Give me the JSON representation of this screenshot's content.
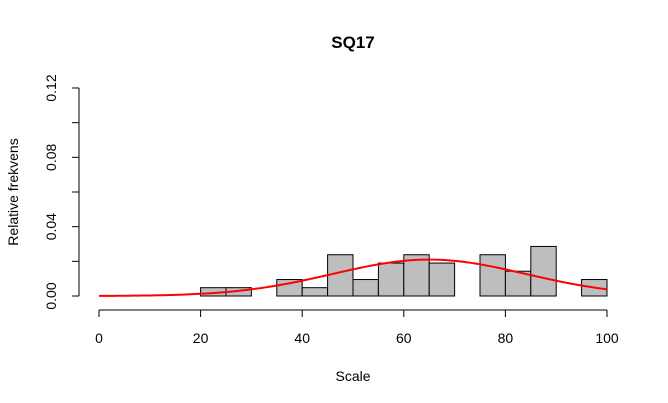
{
  "chart_data": {
    "type": "histogram",
    "title": "SQ17",
    "xlabel": "Scale",
    "ylabel": "Relative frekvens",
    "xlim": [
      0,
      100
    ],
    "ylim": [
      0,
      0.12
    ],
    "x_ticks": [
      0,
      20,
      40,
      60,
      80,
      100
    ],
    "y_ticks": [
      0.0,
      0.04,
      0.08,
      0.12
    ],
    "x_tick_labels": [
      "0",
      "20",
      "40",
      "60",
      "80",
      "100"
    ],
    "y_tick_labels": [
      "0.00",
      "0.04",
      "0.08",
      "0.12"
    ],
    "bin_width": 5,
    "bins": [
      {
        "start": 20,
        "end": 25,
        "value": 0.0048
      },
      {
        "start": 25,
        "end": 30,
        "value": 0.0048
      },
      {
        "start": 35,
        "end": 40,
        "value": 0.0095
      },
      {
        "start": 40,
        "end": 45,
        "value": 0.0048
      },
      {
        "start": 45,
        "end": 50,
        "value": 0.0238
      },
      {
        "start": 50,
        "end": 55,
        "value": 0.0095
      },
      {
        "start": 55,
        "end": 60,
        "value": 0.019
      },
      {
        "start": 60,
        "end": 65,
        "value": 0.0238
      },
      {
        "start": 65,
        "end": 70,
        "value": 0.019
      },
      {
        "start": 75,
        "end": 80,
        "value": 0.0238
      },
      {
        "start": 80,
        "end": 85,
        "value": 0.0143
      },
      {
        "start": 85,
        "end": 90,
        "value": 0.0286
      },
      {
        "start": 95,
        "end": 100,
        "value": 0.0095
      }
    ],
    "density_curve": {
      "distribution": "normal",
      "mean": 65,
      "sd": 19,
      "color": "#ff0000",
      "x_range": [
        0,
        100
      ]
    },
    "bar_fill": "#bebebe",
    "bar_stroke": "#000000"
  }
}
